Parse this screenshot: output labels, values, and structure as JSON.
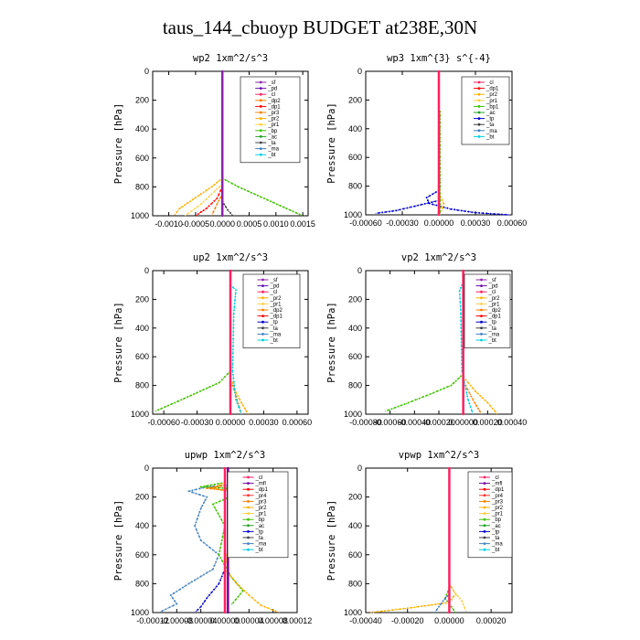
{
  "figure": {
    "title": "taus_144_cbuoyp  BUDGET at238E,30N"
  },
  "colors": {
    "sf": "#8B22AA",
    "pd": "#6a0dad",
    "cl": "#ff2060",
    "dp2": "#ff7f00",
    "dp1": "#ff0000",
    "pr3": "#f08000",
    "pr2": "#ffb000",
    "pr1": "#ffd040",
    "bp": "#40c000",
    "bp1": "#40c000",
    "ac": "#20a020",
    "ta": "#404040",
    "tp": "#0000cc",
    "ma": "#4080c0",
    "bt": "#00d0e0",
    "mfl": "#7000a0",
    "pr4": "#ff3030"
  },
  "chart_data": [
    {
      "type": "line",
      "title": "wp2  1xm^2/s^3",
      "ylabel": "Pressure [hPa]",
      "xlim": [
        -0.0013,
        0.0016
      ],
      "ylim": [
        1000,
        0
      ],
      "xticks": [
        -0.001,
        -0.0005,
        0.0,
        0.0005,
        0.001,
        0.0015
      ],
      "xtick_labels": [
        "-0.0010",
        "-0.0005",
        "0.0000",
        "0.0005",
        "0.0010",
        "0.0015"
      ],
      "yticks": [
        0,
        200,
        400,
        600,
        800,
        1000
      ],
      "legend": [
        "_sf",
        "_pd",
        "_cl",
        "_dp2",
        "_dp1",
        "_pr3",
        "_pr2",
        "_pr1",
        "_bp",
        "_ac",
        "_ta",
        "_ma",
        "_bt"
      ],
      "legend_keys": [
        "sf",
        "pd",
        "cl",
        "dp2",
        "dp1",
        "pr3",
        "pr2",
        "pr1",
        "bp",
        "ac",
        "ta",
        "ma",
        "bt"
      ],
      "series": [
        {
          "name": "_bp",
          "key": "bp",
          "p": [
            740,
            800,
            850,
            900,
            950,
            1000
          ],
          "x": [
            0.0,
            0.0003,
            0.0006,
            0.0009,
            0.0012,
            0.0015
          ]
        },
        {
          "name": "_pr2",
          "key": "pr2",
          "p": [
            740,
            800,
            850,
            900,
            950,
            1000
          ],
          "x": [
            0.0,
            -0.0002,
            -0.0004,
            -0.0006,
            -0.0008,
            -0.0009
          ]
        },
        {
          "name": "_pr1",
          "key": "pr1",
          "p": [
            780,
            850,
            920,
            1000
          ],
          "x": [
            0.0,
            -0.0002,
            -0.0004,
            -0.0007
          ]
        },
        {
          "name": "_dp1",
          "key": "dp1",
          "p": [
            800,
            880,
            950,
            1000
          ],
          "x": [
            0.0,
            -0.0001,
            -0.0003,
            -0.0005
          ]
        },
        {
          "name": "_pr3",
          "key": "pr3",
          "p": [
            850,
            920,
            1000
          ],
          "x": [
            0.0,
            -0.0001,
            -0.0002
          ]
        },
        {
          "name": "_ta",
          "key": "ta",
          "p": [
            900,
            960,
            1000
          ],
          "x": [
            0.0,
            0.0001,
            0.0002
          ]
        },
        {
          "name": "_sf",
          "key": "sf",
          "p": [
            0,
            1000
          ],
          "x": [
            0.0,
            0.0
          ]
        }
      ]
    },
    {
      "type": "line",
      "title": "wp3  1xm^{3} s^{-4}",
      "ylabel": "Pressure [hPa]",
      "xlim": [
        -0.0006,
        0.0006
      ],
      "ylim": [
        1000,
        0
      ],
      "xticks": [
        -0.0006,
        -0.0003,
        0.0,
        0.0003,
        0.0006
      ],
      "xtick_labels": [
        "-0.00060",
        "-0.00030",
        "0.00000",
        "0.00030",
        "0.00060"
      ],
      "yticks": [
        0,
        200,
        400,
        600,
        800,
        1000
      ],
      "legend": [
        "_cl",
        "_dp1",
        "_pr2",
        "_pr1",
        "_bp1",
        "_ac",
        "_tp",
        "_ta",
        "_ma",
        "_bt"
      ],
      "legend_keys": [
        "cl",
        "dp1",
        "pr2",
        "pr1",
        "bp1",
        "ac",
        "tp",
        "ta",
        "ma",
        "bt"
      ],
      "series": [
        {
          "name": "_tp",
          "key": "tp",
          "p": [
            830,
            880,
            920,
            960,
            985,
            1000
          ],
          "x": [
            0.0,
            -0.0001,
            -8e-05,
            0.0001,
            0.0003,
            0.00058
          ]
        },
        {
          "name": "_tp2",
          "key": "tp",
          "p": [
            900,
            940,
            970,
            990
          ],
          "x": [
            0.0,
            -0.0002,
            -0.00035,
            -0.00052
          ]
        },
        {
          "name": "_pr2",
          "key": "pr2",
          "p": [
            850,
            920,
            980
          ],
          "x": [
            0.0,
            4e-05,
            2e-05
          ]
        },
        {
          "name": "_bp1",
          "key": "bp1",
          "p": [
            280,
            700,
            1000
          ],
          "x": [
            1e-05,
            1e-05,
            1e-05
          ]
        },
        {
          "name": "_cl",
          "key": "cl",
          "p": [
            0,
            1000
          ],
          "x": [
            0.0,
            0.0
          ]
        }
      ]
    },
    {
      "type": "line",
      "title": "up2  1xm^2/s^3",
      "ylabel": "Pressure [hPa]",
      "xlim": [
        -0.0007,
        0.0007
      ],
      "ylim": [
        1000,
        0
      ],
      "xticks": [
        -0.0006,
        -0.0003,
        0.0,
        0.0003,
        0.0006
      ],
      "xtick_labels": [
        "-0.00060",
        "-0.00030",
        "0.00000",
        "0.00030",
        "0.00060"
      ],
      "yticks": [
        0,
        200,
        400,
        600,
        800,
        1000
      ],
      "legend": [
        "_sf",
        "_pd",
        "_cl",
        "_pr2",
        "_pr1",
        "_dp2",
        "_dp1",
        "_tp",
        "_ta",
        "_ma",
        "_bt"
      ],
      "legend_keys": [
        "sf",
        "pd",
        "cl",
        "pr2",
        "pr1",
        "dp2",
        "dp1",
        "tp",
        "ta",
        "ma",
        "bt"
      ],
      "series": [
        {
          "name": "_pr1",
          "key": "bp",
          "p": [
            700,
            780,
            850,
            920,
            980
          ],
          "x": [
            0.0,
            -0.0001,
            -0.0003,
            -0.0005,
            -0.00068
          ]
        },
        {
          "name": "_pr2",
          "key": "pr2",
          "p": [
            780,
            850,
            920,
            1000
          ],
          "x": [
            2e-05,
            5e-05,
            0.0001,
            0.00016
          ]
        },
        {
          "name": "_dp2",
          "key": "dp2",
          "p": [
            800,
            900,
            1000
          ],
          "x": [
            2e-05,
            6e-05,
            0.0001
          ]
        },
        {
          "name": "_bt",
          "key": "bt",
          "p": [
            100,
            135,
            300,
            700,
            900,
            1000
          ],
          "x": [
            0.0,
            5e-05,
            3e-05,
            2e-05,
            5e-05,
            0.0001
          ]
        },
        {
          "name": "_sf",
          "key": "cl",
          "p": [
            0,
            1000
          ],
          "x": [
            0.0,
            0.0
          ]
        }
      ]
    },
    {
      "type": "line",
      "title": "vp2  1xm^2/s^3",
      "ylabel": "Pressure [hPa]",
      "xlim": [
        -0.0008,
        0.0004
      ],
      "ylim": [
        1000,
        0
      ],
      "xticks": [
        -0.0008,
        -0.0006,
        -0.0004,
        -0.0002,
        0.0,
        0.0002,
        0.0004
      ],
      "xtick_labels": [
        "-0.00080",
        "-0.00060",
        "-0.00040",
        "-0.00020",
        "0.00000",
        "0.00020",
        "0.00040"
      ],
      "yticks": [
        0,
        200,
        400,
        600,
        800,
        1000
      ],
      "legend": [
        "_sf",
        "_pd",
        "_cl",
        "_pr2",
        "_pr1",
        "_dp2",
        "_dp1",
        "_tp",
        "_ta",
        "_ma",
        "_bt"
      ],
      "legend_keys": [
        "sf",
        "pd",
        "cl",
        "pr2",
        "pr1",
        "dp2",
        "dp1",
        "tp",
        "ta",
        "ma",
        "bt"
      ],
      "series": [
        {
          "name": "_pr1",
          "key": "bp",
          "p": [
            720,
            800,
            870,
            930,
            980
          ],
          "x": [
            0.0,
            -0.0001,
            -0.0003,
            -0.00048,
            -0.00064
          ]
        },
        {
          "name": "_pr2",
          "key": "pr2",
          "p": [
            760,
            840,
            920,
            1000
          ],
          "x": [
            2e-05,
            0.0001,
            0.0002,
            0.00028
          ]
        },
        {
          "name": "_dp2",
          "key": "dp2",
          "p": [
            800,
            900,
            1000
          ],
          "x": [
            2e-05,
            8e-05,
            0.00015
          ]
        },
        {
          "name": "_bt",
          "key": "bt",
          "p": [
            100,
            140,
            300,
            700,
            900,
            1000
          ],
          "x": [
            -1e-05,
            -3e-05,
            -2e-05,
            -1e-05,
            4e-05,
            8e-05
          ]
        },
        {
          "name": "_sf",
          "key": "cl",
          "p": [
            0,
            1000
          ],
          "x": [
            0.0,
            0.0
          ]
        }
      ]
    },
    {
      "type": "line",
      "title": "upwp  1xm^2/s^3",
      "ylabel": "Pressure [hPa]",
      "xlim": [
        -0.00012,
        0.00012
      ],
      "ylim": [
        1000,
        0
      ],
      "xticks": [
        -0.00012,
        -8e-05,
        -4e-05,
        0.0,
        4e-05,
        8e-05,
        0.00012
      ],
      "xtick_labels": [
        "-0.00012",
        "-0.00008",
        "-0.00004",
        "0.00000",
        "0.00004",
        "0.00008",
        "0.00012"
      ],
      "yticks": [
        0,
        200,
        400,
        600,
        800,
        1000
      ],
      "legend": [
        "_cl",
        "_mfl",
        "_dp1",
        "_pr4",
        "_pr3",
        "_pr2",
        "_pr1",
        "_bp",
        "_ac",
        "_tp",
        "_ta",
        "_ma",
        "_bt"
      ],
      "legend_keys": [
        "cl",
        "mfl",
        "dp1",
        "pr4",
        "pr3",
        "pr2",
        "pr1",
        "bp",
        "ac",
        "tp",
        "ta",
        "ma",
        "bt"
      ],
      "series": [
        {
          "name": "_ma",
          "key": "ma",
          "p": [
            60,
            100,
            130,
            160,
            200,
            280,
            400,
            500,
            600,
            700,
            800,
            880,
            940,
            1000
          ],
          "x": [
            2e-05,
            7e-05,
            -3e-05,
            -6e-05,
            -3e-05,
            -4e-05,
            -5e-05,
            -4e-05,
            -1e-05,
            -2e-05,
            -6e-05,
            -9e-05,
            -8e-05,
            -0.00011
          ]
        },
        {
          "name": "_bp",
          "key": "bp",
          "p": [
            100,
            130,
            150,
            180,
            250,
            400,
            600,
            750,
            850,
            950
          ],
          "x": [
            0.0,
            -4e-05,
            5e-05,
            2e-05,
            -2e-05,
            0.0,
            -1e-05,
            1e-05,
            3e-05,
            1e-05
          ]
        },
        {
          "name": "_pr2",
          "key": "pr2",
          "p": [
            100,
            140,
            180,
            400,
            700,
            800,
            880,
            950,
            1000
          ],
          "x": [
            0.0,
            -2e-05,
            3e-05,
            1e-05,
            0.0,
            2e-05,
            4e-05,
            6e-05,
            9e-05
          ]
        },
        {
          "name": "_pr3",
          "key": "pr3",
          "p": [
            120,
            140,
            160
          ],
          "x": [
            0.0,
            -3e-05,
            2e-05
          ]
        },
        {
          "name": "_tp",
          "key": "tp",
          "p": [
            700,
            800,
            900,
            960,
            1000
          ],
          "x": [
            0.0,
            -1e-05,
            -3e-05,
            -4e-05,
            -5e-05
          ]
        },
        {
          "name": "_cl",
          "key": "cl",
          "p": [
            0,
            1000
          ],
          "x": [
            0.0,
            0.0
          ]
        },
        {
          "name": "_mfl",
          "key": "mfl",
          "p": [
            0,
            1000
          ],
          "x": [
            5e-06,
            5e-06
          ]
        }
      ]
    },
    {
      "type": "line",
      "title": "vpwp  1xm^2/s^3",
      "ylabel": "Pressure [hPa]",
      "xlim": [
        -0.0004,
        0.0003
      ],
      "ylim": [
        1000,
        0
      ],
      "xticks": [
        -0.0004,
        -0.0002,
        0.0,
        0.0002
      ],
      "xtick_labels": [
        "-0.00040",
        "-0.00020",
        "0.00000",
        "0.00020"
      ],
      "yticks": [
        0,
        200,
        400,
        600,
        800,
        1000
      ],
      "legend": [
        "_cl",
        "_mfl",
        "_dp1",
        "_pr4",
        "_pr3",
        "_pr2",
        "_pr1",
        "_bp",
        "_ac",
        "_tp",
        "_ta",
        "_ma",
        "_bt"
      ],
      "legend_keys": [
        "cl",
        "mfl",
        "dp1",
        "pr4",
        "pr3",
        "pr2",
        "pr1",
        "bp",
        "ac",
        "tp",
        "ta",
        "ma",
        "bt"
      ],
      "series": [
        {
          "name": "_pr2",
          "key": "pr2",
          "p": [
            800,
            870,
            930,
            970,
            1000
          ],
          "x": [
            0.0,
            3e-05,
            0.0,
            -0.0002,
            -0.00038
          ]
        },
        {
          "name": "_bp",
          "key": "bp",
          "p": [
            830,
            900,
            960,
            1000
          ],
          "x": [
            0.0,
            -2e-05,
            1e-05,
            3e-05
          ]
        },
        {
          "name": "_ma",
          "key": "ma",
          "p": [
            870,
            920,
            960,
            1000
          ],
          "x": [
            0.0,
            -3e-05,
            -5e-05,
            -7e-05
          ]
        },
        {
          "name": "_pr1",
          "key": "pr1",
          "p": [
            850,
            920,
            990
          ],
          "x": [
            2e-05,
            6e-05,
            8e-05
          ]
        },
        {
          "name": "_cl",
          "key": "cl",
          "p": [
            0,
            1000
          ],
          "x": [
            0.0,
            0.0
          ]
        }
      ]
    }
  ]
}
